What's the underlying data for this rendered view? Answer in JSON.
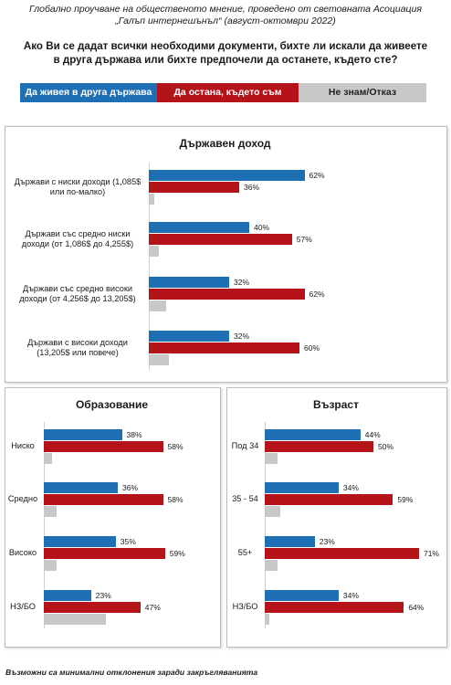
{
  "header": {
    "line1": "Глобално проучване на общественото мнение, проведено от световната Асоциация",
    "line2": "„Галъп интернешънъл“ (август-октомври 2022)"
  },
  "question": {
    "line1": "Ако Ви се дадат всички необходими документи, бихте ли искали да живеете",
    "line2": "в друга държава или бихте предпочели да останете, където сте?"
  },
  "legend": [
    {
      "label": "Да живея в друга държава",
      "color": "#1f6fb5"
    },
    {
      "label": "Да остана, където съм",
      "color": "#b31319"
    },
    {
      "label": "Не знам/Отказ",
      "color": "#c8c8c8"
    }
  ],
  "colors": {
    "blue": "#1f6fb5",
    "red": "#b31319",
    "gray": "#c8c8c8"
  },
  "footnote": "Възможни са минимални отклонения заради закръгляванията",
  "chart_data": [
    {
      "type": "bar",
      "title": "Държавен доход",
      "categories": [
        [
          "Държави с ниски доходи (1,085$",
          "или по-малко)"
        ],
        [
          "Държави със средно ниски",
          "доходи (от 1,086$ до 4,255$)"
        ],
        [
          "Държави със средно високи",
          "доходи (от 4,256$ до 13,205$)"
        ],
        [
          "Държави с високи доходи",
          "(13,205$ или повече)"
        ]
      ],
      "series": [
        {
          "name": "Да живея в друга държава",
          "values": [
            62,
            40,
            32,
            32
          ]
        },
        {
          "name": "Да остана, където съм",
          "values": [
            36,
            57,
            62,
            60
          ]
        },
        {
          "name": "Не знам/Отказ",
          "values": [
            2,
            4,
            7,
            8
          ]
        }
      ],
      "xlim": [
        0,
        100
      ]
    },
    {
      "type": "bar",
      "title": "Образование",
      "categories": [
        [
          "Ниско"
        ],
        [
          "Средно"
        ],
        [
          "Високо"
        ],
        [
          "НЗ/БО"
        ]
      ],
      "series": [
        {
          "name": "Да живея в друга държава",
          "values": [
            38,
            36,
            35,
            23
          ]
        },
        {
          "name": "Да остана, където съм",
          "values": [
            58,
            58,
            59,
            47
          ]
        },
        {
          "name": "Не знам/Отказ",
          "values": [
            4,
            6,
            6,
            30
          ]
        }
      ],
      "xlim": [
        0,
        100
      ]
    },
    {
      "type": "bar",
      "title": "Възраст",
      "categories": [
        [
          "Под 34"
        ],
        [
          "35 - 54"
        ],
        [
          "55+"
        ],
        [
          "НЗ/БО"
        ]
      ],
      "series": [
        {
          "name": "Да живея в друга държава",
          "values": [
            44,
            34,
            23,
            34
          ]
        },
        {
          "name": "Да остана, където съм",
          "values": [
            50,
            59,
            71,
            64
          ]
        },
        {
          "name": "Не знам/Отказ",
          "values": [
            6,
            7,
            6,
            2
          ]
        }
      ],
      "xlim": [
        0,
        100
      ]
    }
  ]
}
